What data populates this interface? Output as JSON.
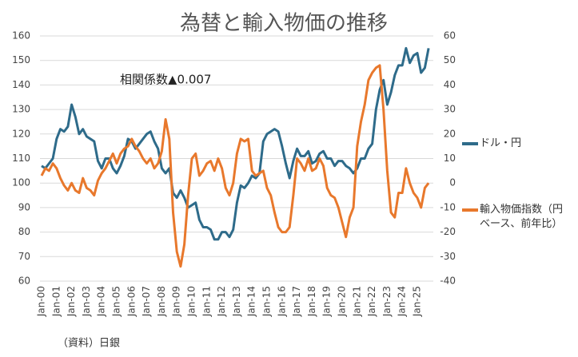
{
  "chart_data": {
    "type": "line",
    "title": "為替と輸入物価の推移",
    "annotation": "相関係数▲0.007",
    "source": "（資料）日銀",
    "categories": [
      "Jan-00",
      null,
      null,
      null,
      "Jan-01",
      null,
      null,
      null,
      "Jan-02",
      null,
      null,
      null,
      "Jan-03",
      null,
      null,
      null,
      "Jan-04",
      null,
      null,
      null,
      "Jan-05",
      null,
      null,
      null,
      "Jan-06",
      null,
      null,
      null,
      "Jan-07",
      null,
      null,
      null,
      "Jan-08",
      null,
      null,
      null,
      "Jan-09",
      null,
      null,
      null,
      "Jan-10",
      null,
      null,
      null,
      "Jan-11",
      null,
      null,
      null,
      "Jan-12",
      null,
      null,
      null,
      "Jan-13",
      null,
      null,
      null,
      "Jan-14",
      null,
      null,
      null,
      "Jan-15",
      null,
      null,
      null,
      "Jan-16",
      null,
      null,
      null,
      "Jan-17",
      null,
      null,
      null,
      "Jan-18",
      null,
      null,
      null,
      "Jan-19",
      null,
      null,
      null,
      "Jan-20",
      null,
      null,
      null,
      "Jan-21",
      null,
      null,
      null,
      "Jan-22",
      null,
      null,
      null,
      "Jan-23",
      null,
      null,
      null,
      "Jan-24",
      null,
      null,
      null,
      "Jan-25",
      null,
      null,
      null
    ],
    "series": [
      {
        "name": "ドル・円",
        "color": "#2e6b8a",
        "axis": "y",
        "values": [
          107,
          106,
          108,
          110,
          118,
          122,
          121,
          123,
          132,
          127,
          120,
          122,
          119,
          118,
          117,
          109,
          106,
          110,
          110,
          106,
          104,
          107,
          111,
          118,
          117,
          114,
          116,
          118,
          120,
          121,
          117,
          114,
          106,
          104,
          106,
          96,
          94,
          97,
          94,
          90,
          91,
          92,
          85,
          82,
          82,
          81,
          77,
          77,
          80,
          80,
          78,
          81,
          92,
          99,
          98,
          100,
          103,
          102,
          104,
          117,
          120,
          121,
          122,
          121,
          115,
          108,
          102,
          109,
          114,
          111,
          111,
          113,
          108,
          109,
          112,
          113,
          110,
          110,
          107,
          109,
          109,
          107,
          106,
          104,
          106,
          110,
          110,
          114,
          116,
          130,
          138,
          142,
          132,
          137,
          144,
          148,
          148,
          155,
          149,
          152,
          153,
          145,
          147,
          155
        ]
      },
      {
        "name": "輸入物価指数（円ベース、前年比）",
        "color": "#e8782c",
        "axis": "y2",
        "values": [
          3,
          6,
          5,
          8,
          6,
          2,
          -1,
          -3,
          0,
          -3,
          -4,
          2,
          -2,
          -3,
          -5,
          1,
          4,
          6,
          9,
          12,
          8,
          12,
          14,
          15,
          18,
          15,
          13,
          10,
          8,
          10,
          6,
          8,
          13,
          26,
          18,
          -12,
          -28,
          -34,
          -25,
          -5,
          10,
          12,
          3,
          5,
          8,
          9,
          5,
          10,
          6,
          -2,
          -5,
          0,
          12,
          18,
          17,
          18,
          5,
          3,
          4,
          5,
          -2,
          -5,
          -12,
          -18,
          -20,
          -20,
          -18,
          -5,
          10,
          8,
          5,
          10,
          5,
          6,
          10,
          7,
          -2,
          -5,
          -6,
          -10,
          -16,
          -22,
          -14,
          -10,
          15,
          25,
          32,
          42,
          45,
          47,
          48,
          30,
          5,
          -12,
          -14,
          -4,
          -4,
          6,
          0,
          -4,
          -6,
          -10,
          -2,
          0
        ]
      }
    ],
    "ylim": [
      60,
      160
    ],
    "yticks": [
      60,
      70,
      80,
      90,
      100,
      110,
      120,
      130,
      140,
      150,
      160
    ],
    "y2lim": [
      -40,
      60
    ],
    "y2ticks": [
      -40,
      -30,
      -20,
      -10,
      0,
      10,
      20,
      30,
      40,
      50,
      60
    ],
    "grid": true
  }
}
